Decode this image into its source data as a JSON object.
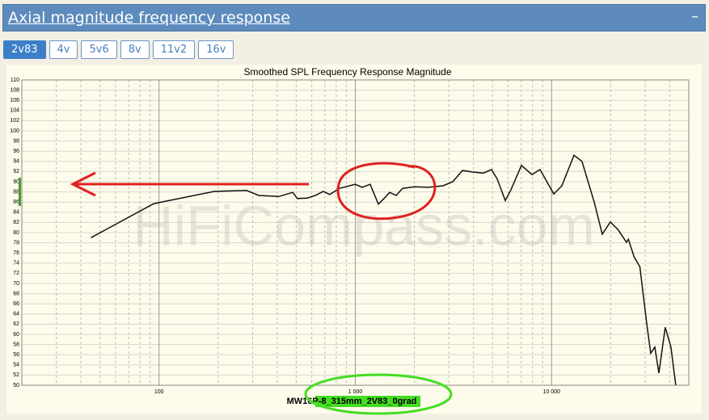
{
  "header": {
    "title": "Axial magnitude frequency response",
    "collapse": "–"
  },
  "tabs": {
    "items": [
      "2v83",
      "4v",
      "5v6",
      "8v",
      "11v2",
      "16v"
    ],
    "active": 0
  },
  "chart_data": {
    "type": "line",
    "title": "Smoothed SPL Frequency Response Magnitude",
    "watermark": "HiFiCompass.com",
    "xscale": "log",
    "xlim": [
      20,
      50000
    ],
    "ylim": [
      50,
      110
    ],
    "xticks": [
      {
        "value": 100,
        "label": "100"
      },
      {
        "value": 1000,
        "label": "1 000"
      },
      {
        "value": 10000,
        "label": "10 000"
      }
    ],
    "xminorticks": [
      30,
      40,
      50,
      60,
      70,
      80,
      90,
      200,
      300,
      400,
      500,
      600,
      700,
      800,
      900,
      2000,
      3000,
      4000,
      5000,
      6000,
      7000,
      8000,
      9000,
      20000,
      30000,
      40000
    ],
    "yticks": [
      50,
      52,
      54,
      56,
      58,
      60,
      62,
      64,
      66,
      68,
      70,
      72,
      74,
      76,
      78,
      80,
      82,
      84,
      86,
      88,
      90,
      92,
      94,
      96,
      98,
      100,
      102,
      104,
      106,
      108,
      110
    ],
    "grid": true,
    "x": [
      45,
      94,
      191,
      279,
      322,
      408,
      480,
      507,
      569,
      625,
      687,
      741,
      830,
      1000,
      1083,
      1191,
      1310,
      1400,
      1496,
      1614,
      1741,
      1988,
      2358,
      2800,
      3136,
      3516,
      3974,
      4495,
      4943,
      5285,
      5809,
      6209,
      7019,
      7943,
      8736,
      10260,
      11280,
      13000,
      14290,
      16480,
      18120,
      19920,
      21890,
      24060,
      24620,
      26330,
      28170,
      30520,
      32000,
      33570,
      35190,
      37940,
      40550,
      42940
    ],
    "series": [
      {
        "name": "MW16P-8_315mm_2V83_0grad",
        "color": "#111111",
        "values": [
          79,
          85.7,
          88.1,
          88.3,
          87.3,
          87.1,
          87.9,
          86.7,
          86.8,
          87.3,
          88.1,
          87.5,
          88.7,
          89.5,
          88.9,
          89.5,
          85.6,
          86.7,
          87.9,
          87.3,
          88.7,
          89,
          88.9,
          89.2,
          90,
          92.2,
          91.9,
          91.7,
          92.4,
          90.5,
          86.3,
          88.4,
          93.2,
          91.4,
          92.4,
          87.6,
          89.2,
          95.2,
          94,
          86,
          79.7,
          82.1,
          80.5,
          78.1,
          78.7,
          75.2,
          73.3,
          62.2,
          56.3,
          57.5,
          52.4,
          61.4,
          57.5,
          50
        ]
      }
    ]
  }
}
